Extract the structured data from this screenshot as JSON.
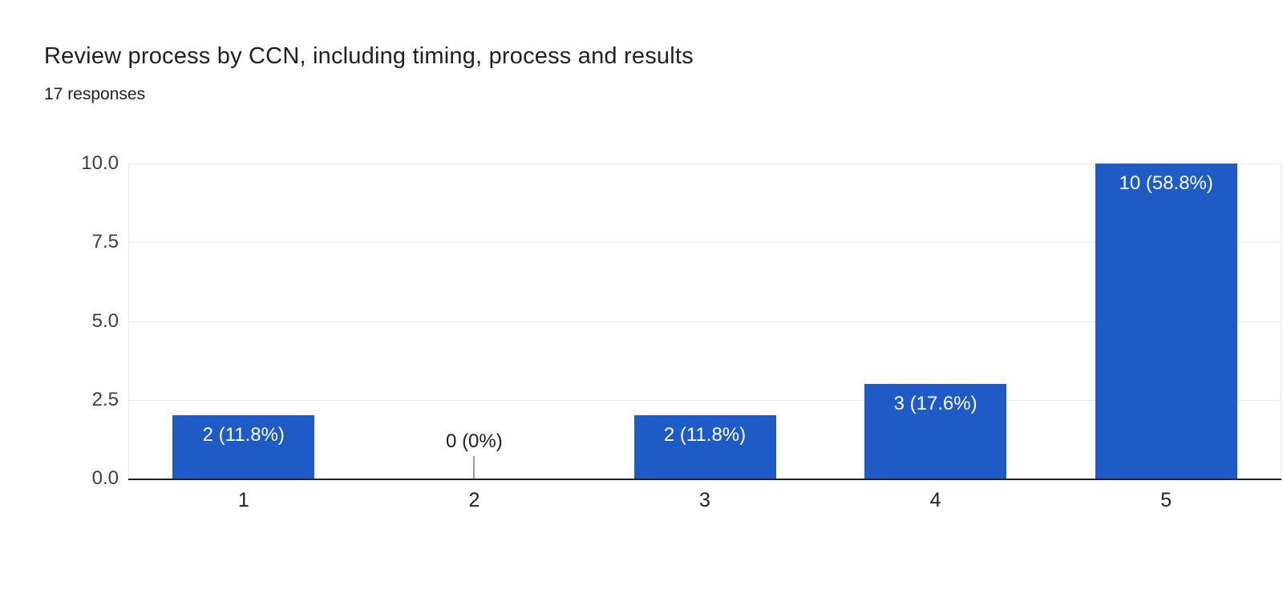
{
  "header": {
    "title": "Review process by CCN, including timing, process and results",
    "subtitle": "17 responses"
  },
  "colors": {
    "bar": "#1e5bc6",
    "bar_label": "#ffffff",
    "zero_label": "#212121",
    "zero_stub": "#9e9e9e",
    "gridline": "#ebebeb",
    "plot_border": "#ececec",
    "axis_line": "#212121",
    "ytick_label": "#3c4043",
    "xtick_label": "#202124",
    "background": "#ffffff"
  },
  "chart_data": {
    "type": "bar",
    "title": "Review process by CCN, including timing, process and results",
    "subtitle": "17 responses",
    "categories": [
      "1",
      "2",
      "3",
      "4",
      "5"
    ],
    "values": [
      2,
      0,
      2,
      3,
      10
    ],
    "bar_labels": [
      "2 (11.8%)",
      "0 (0%)",
      "2 (11.8%)",
      "3 (17.6%)",
      "10 (58.8%)"
    ],
    "xlabel": "",
    "ylabel": "",
    "ylim": [
      0,
      10
    ],
    "yticks": [
      0,
      2.5,
      5,
      7.5,
      10
    ],
    "ytick_labels": [
      "0.0",
      "2.5",
      "5.0",
      "7.5",
      "10.0"
    ],
    "grid": true,
    "legend": "none",
    "bar_label_position": "inside-top",
    "zero_value_style": "stub-line-with-label-above"
  }
}
